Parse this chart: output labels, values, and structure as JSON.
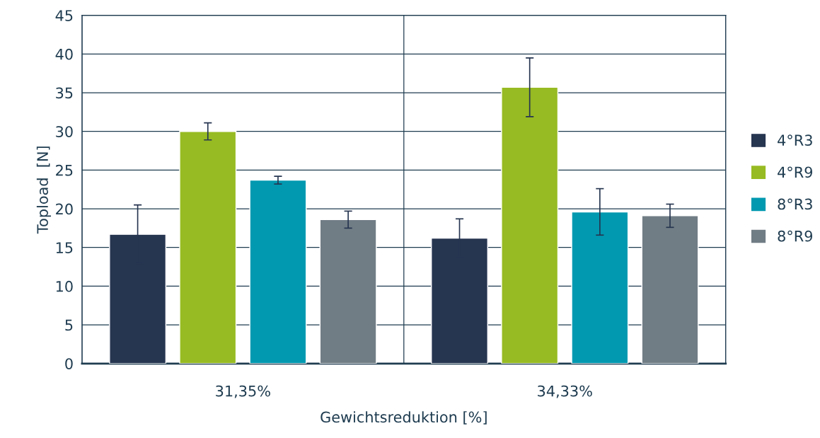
{
  "chart_data": {
    "type": "bar",
    "xlabel": "Gewichtsreduktion [%]",
    "ylabel": "Topload  [N]",
    "categories": [
      "31,35%",
      "34,33%"
    ],
    "series": [
      {
        "name": "4°R3",
        "color": "#263550",
        "values": [
          16.7,
          16.2
        ],
        "errors": [
          3.8,
          2.5
        ]
      },
      {
        "name": "4°R9",
        "color": "#97bb22",
        "values": [
          30.0,
          35.7
        ],
        "errors": [
          1.1,
          3.8
        ]
      },
      {
        "name": "8°R3",
        "color": "#0099b0",
        "values": [
          23.7,
          19.6
        ],
        "errors": [
          0.5,
          3.0
        ]
      },
      {
        "name": "8°R9",
        "color": "#717d85",
        "values": [
          18.6,
          19.1
        ],
        "errors": [
          1.1,
          1.5
        ]
      }
    ],
    "ylim": [
      0,
      45
    ],
    "yticks": [
      0,
      5,
      10,
      15,
      20,
      25,
      30,
      35,
      40,
      45
    ],
    "grid": true,
    "legend": "right"
  }
}
